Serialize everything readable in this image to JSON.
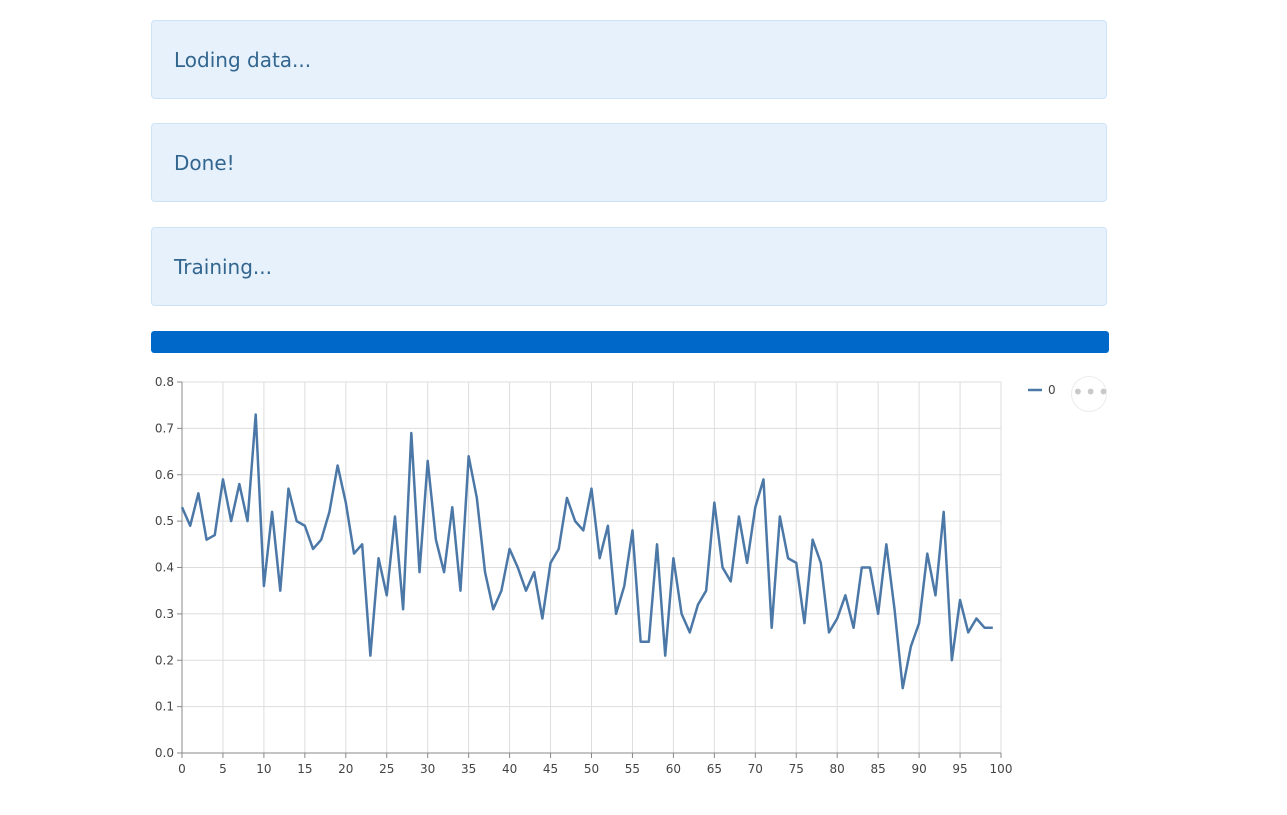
{
  "alerts": [
    {
      "text": "Loding data..."
    },
    {
      "text": "Done!"
    },
    {
      "text": "Training..."
    }
  ],
  "progress": {
    "value": 1.0,
    "color": "#0068c9"
  },
  "menu": {
    "icon": "more-horizontal-icon",
    "glyph": "•••"
  },
  "chart_data": {
    "type": "line",
    "x": [
      0,
      1,
      2,
      3,
      4,
      5,
      6,
      7,
      8,
      9,
      10,
      11,
      12,
      13,
      14,
      15,
      16,
      17,
      18,
      19,
      20,
      21,
      22,
      23,
      24,
      25,
      26,
      27,
      28,
      29,
      30,
      31,
      32,
      33,
      34,
      35,
      36,
      37,
      38,
      39,
      40,
      41,
      42,
      43,
      44,
      45,
      46,
      47,
      48,
      49,
      50,
      51,
      52,
      53,
      54,
      55,
      56,
      57,
      58,
      59,
      60,
      61,
      62,
      63,
      64,
      65,
      66,
      67,
      68,
      69,
      70,
      71,
      72,
      73,
      74,
      75,
      76,
      77,
      78,
      79,
      80,
      81,
      82,
      83,
      84,
      85,
      86,
      87,
      88,
      89,
      90,
      91,
      92,
      93,
      94,
      95,
      96,
      97,
      98,
      99
    ],
    "series": [
      {
        "name": "0",
        "color": "#4c78a8",
        "values": [
          0.53,
          0.49,
          0.56,
          0.46,
          0.47,
          0.59,
          0.5,
          0.58,
          0.5,
          0.73,
          0.36,
          0.52,
          0.35,
          0.57,
          0.5,
          0.49,
          0.44,
          0.46,
          0.52,
          0.62,
          0.54,
          0.43,
          0.45,
          0.21,
          0.42,
          0.34,
          0.51,
          0.31,
          0.69,
          0.39,
          0.63,
          0.46,
          0.39,
          0.53,
          0.35,
          0.64,
          0.55,
          0.39,
          0.31,
          0.35,
          0.44,
          0.4,
          0.35,
          0.39,
          0.29,
          0.41,
          0.44,
          0.55,
          0.5,
          0.48,
          0.57,
          0.42,
          0.49,
          0.3,
          0.36,
          0.48,
          0.24,
          0.24,
          0.45,
          0.21,
          0.42,
          0.3,
          0.26,
          0.32,
          0.35,
          0.54,
          0.4,
          0.37,
          0.51,
          0.41,
          0.53,
          0.59,
          0.27,
          0.51,
          0.42,
          0.41,
          0.28,
          0.46,
          0.41,
          0.26,
          0.29,
          0.34,
          0.27,
          0.4,
          0.4,
          0.3,
          0.45,
          0.31,
          0.14,
          0.23,
          0.28,
          0.43,
          0.34,
          0.52,
          0.2,
          0.33,
          0.26,
          0.29,
          0.27,
          0.27
        ]
      }
    ],
    "xticks": [
      "0",
      "5",
      "10",
      "15",
      "20",
      "25",
      "30",
      "35",
      "40",
      "45",
      "50",
      "55",
      "60",
      "65",
      "70",
      "75",
      "80",
      "85",
      "90",
      "95",
      "100"
    ],
    "yticks": [
      "0.0",
      "0.1",
      "0.2",
      "0.3",
      "0.4",
      "0.5",
      "0.6",
      "0.7",
      "0.8"
    ],
    "xlim": [
      0,
      100
    ],
    "ylim": [
      0,
      0.8
    ],
    "grid": true,
    "legend": "top-right"
  }
}
